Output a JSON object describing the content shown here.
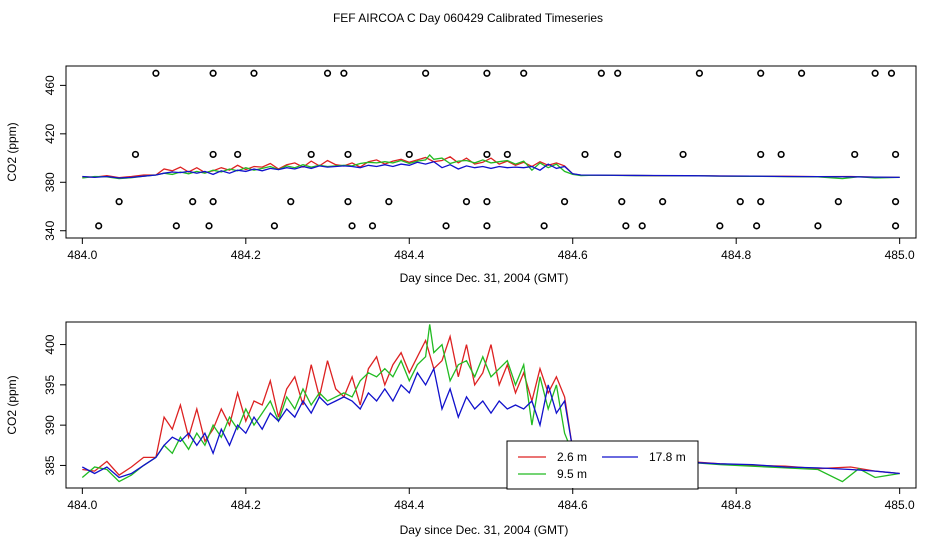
{
  "title": "FEF AIRCOA C  Day 060429  Calibrated Timeseries",
  "colors": {
    "red": "#dd2222",
    "green": "#22bb22",
    "blue": "#1111cc",
    "axis": "#000000"
  },
  "chart_data": [
    {
      "type": "scatter+line",
      "xlabel": "Day since Dec. 31, 2004 (GMT)",
      "ylabel": "CO2 (ppm)",
      "xlim": [
        483.98,
        485.02
      ],
      "ylim": [
        334,
        476
      ],
      "x_ticks": [
        484.0,
        484.2,
        484.4,
        484.6,
        484.8,
        485.0
      ],
      "x_tick_labels": [
        "484.0",
        "484.2",
        "484.4",
        "484.6",
        "484.8",
        "485.0"
      ],
      "y_ticks": [
        340,
        380,
        420,
        460
      ],
      "y_tick_labels": [
        "340",
        "380",
        "420",
        "460"
      ],
      "points": {
        "y_high": 470,
        "x_high": [
          484.09,
          484.16,
          484.21,
          484.3,
          484.32,
          484.42,
          484.495,
          484.54,
          484.635,
          484.655,
          484.755,
          484.83,
          484.88,
          484.97,
          484.99
        ],
        "y_mid": 403,
        "x_mid": [
          484.065,
          484.16,
          484.19,
          484.28,
          484.325,
          484.4,
          484.495,
          484.52,
          484.615,
          484.655,
          484.735,
          484.83,
          484.855,
          484.945,
          484.995
        ],
        "y_low1": 364,
        "x_low1": [
          484.045,
          484.135,
          484.16,
          484.255,
          484.325,
          484.375,
          484.47,
          484.495,
          484.59,
          484.66,
          484.71,
          484.805,
          484.83,
          484.925,
          484.995
        ],
        "y_low2": 344,
        "x_low2": [
          484.02,
          484.115,
          484.155,
          484.235,
          484.33,
          484.355,
          484.445,
          484.495,
          484.565,
          484.665,
          484.685,
          484.78,
          484.825,
          484.9,
          484.995
        ]
      }
    },
    {
      "type": "line",
      "xlabel": "Day since Dec. 31, 2004 (GMT)",
      "ylabel": "CO2 (ppm)",
      "xlim": [
        483.98,
        485.02
      ],
      "ylim": [
        382.2,
        402.8
      ],
      "x_ticks": [
        484.0,
        484.2,
        484.4,
        484.6,
        484.8,
        485.0
      ],
      "x_tick_labels": [
        "484.0",
        "484.2",
        "484.4",
        "484.6",
        "484.8",
        "485.0"
      ],
      "y_ticks": [
        385,
        390,
        395,
        400
      ],
      "y_tick_labels": [
        "385",
        "390",
        "395",
        "400"
      ],
      "legend": {
        "placement": "bottom-center",
        "entries": [
          {
            "name": "2.6 m",
            "color": "#dd2222"
          },
          {
            "name": "9.5 m",
            "color": "#22bb22"
          },
          {
            "name": "17.8 m",
            "color": "#1111cc"
          }
        ]
      },
      "series": [
        {
          "name": "2.6 m",
          "color": "#dd2222",
          "x": [
            484.0,
            484.015,
            484.03,
            484.045,
            484.06,
            484.075,
            484.09,
            484.1,
            484.11,
            484.12,
            484.13,
            484.14,
            484.15,
            484.16,
            484.17,
            484.18,
            484.19,
            484.2,
            484.21,
            484.22,
            484.23,
            484.24,
            484.25,
            484.26,
            484.27,
            484.28,
            484.29,
            484.3,
            484.31,
            484.32,
            484.33,
            484.34,
            484.35,
            484.36,
            484.37,
            484.38,
            484.39,
            484.4,
            484.41,
            484.42,
            484.43,
            484.44,
            484.45,
            484.46,
            484.47,
            484.48,
            484.49,
            484.5,
            484.51,
            484.52,
            484.53,
            484.54,
            484.55,
            484.56,
            484.57,
            484.58,
            484.59,
            484.6,
            484.61,
            484.63,
            484.66,
            484.7,
            484.74,
            484.78,
            484.82,
            484.86,
            484.9,
            484.94,
            484.97,
            485.0
          ],
          "values": [
            384.5,
            384.3,
            385.5,
            383.8,
            384.8,
            386.0,
            386.0,
            391.0,
            389.5,
            392.5,
            388.5,
            392.0,
            388.0,
            389.5,
            392.0,
            390.0,
            394.0,
            390.5,
            393.0,
            392.5,
            395.5,
            391.0,
            394.5,
            396.0,
            392.5,
            397.5,
            393.5,
            398.0,
            394.5,
            393.5,
            396.0,
            392.5,
            397.0,
            398.5,
            395.0,
            397.5,
            399.0,
            396.5,
            398.5,
            400.5,
            397.0,
            398.0,
            401.0,
            396.0,
            400.0,
            395.0,
            396.5,
            400.0,
            395.0,
            397.5,
            394.0,
            396.5,
            393.0,
            397.0,
            394.0,
            396.0,
            393.5,
            387.0,
            385.8,
            385.9,
            385.7,
            385.4,
            385.5,
            385.2,
            385.0,
            384.9,
            384.6,
            384.8,
            384.3,
            384.0
          ]
        },
        {
          "name": "9.5 m",
          "color": "#22bb22",
          "x": [
            484.0,
            484.015,
            484.03,
            484.045,
            484.06,
            484.075,
            484.09,
            484.1,
            484.11,
            484.12,
            484.13,
            484.14,
            484.15,
            484.16,
            484.17,
            484.18,
            484.19,
            484.2,
            484.21,
            484.22,
            484.23,
            484.24,
            484.25,
            484.26,
            484.27,
            484.28,
            484.29,
            484.3,
            484.31,
            484.32,
            484.33,
            484.34,
            484.35,
            484.36,
            484.37,
            484.38,
            484.39,
            484.4,
            484.41,
            484.42,
            484.425,
            484.43,
            484.44,
            484.45,
            484.46,
            484.47,
            484.48,
            484.49,
            484.5,
            484.51,
            484.52,
            484.53,
            484.54,
            484.55,
            484.56,
            484.57,
            484.58,
            484.59,
            484.6,
            484.61,
            484.63,
            484.66,
            484.7,
            484.74,
            484.78,
            484.82,
            484.86,
            484.9,
            484.93,
            484.95,
            484.97,
            485.0
          ],
          "values": [
            383.5,
            384.8,
            384.5,
            383.0,
            383.8,
            385.0,
            386.0,
            387.5,
            386.5,
            388.5,
            387.0,
            389.0,
            387.5,
            390.0,
            388.5,
            391.0,
            389.5,
            392.0,
            390.0,
            391.5,
            393.0,
            390.5,
            393.5,
            392.0,
            394.5,
            392.5,
            394.0,
            393.0,
            393.5,
            394.0,
            393.5,
            395.5,
            396.5,
            396.0,
            397.0,
            396.0,
            398.0,
            395.5,
            397.5,
            398.5,
            402.5,
            399.0,
            400.0,
            395.5,
            397.5,
            398.0,
            396.0,
            398.5,
            396.0,
            397.0,
            398.0,
            395.0,
            397.5,
            390.0,
            396.0,
            392.0,
            395.0,
            389.0,
            386.5,
            385.5,
            385.9,
            385.6,
            385.5,
            385.4,
            385.1,
            384.9,
            384.7,
            384.5,
            383.0,
            384.6,
            383.5,
            384.0
          ]
        },
        {
          "name": "17.8 m",
          "color": "#1111cc",
          "x": [
            484.0,
            484.015,
            484.03,
            484.045,
            484.06,
            484.075,
            484.09,
            484.1,
            484.11,
            484.12,
            484.13,
            484.14,
            484.15,
            484.16,
            484.17,
            484.18,
            484.19,
            484.2,
            484.21,
            484.22,
            484.23,
            484.24,
            484.25,
            484.26,
            484.27,
            484.28,
            484.29,
            484.3,
            484.31,
            484.32,
            484.33,
            484.34,
            484.35,
            484.36,
            484.37,
            484.38,
            484.39,
            484.4,
            484.41,
            484.42,
            484.43,
            484.44,
            484.45,
            484.46,
            484.47,
            484.48,
            484.49,
            484.5,
            484.51,
            484.52,
            484.53,
            484.54,
            484.55,
            484.56,
            484.57,
            484.58,
            484.59,
            484.6,
            484.61,
            484.63,
            484.66,
            484.7,
            484.74,
            484.78,
            484.82,
            484.86,
            484.9,
            484.94,
            484.97,
            485.0
          ],
          "values": [
            384.8,
            384.0,
            384.8,
            383.5,
            384.0,
            385.0,
            386.0,
            387.5,
            388.5,
            388.0,
            389.0,
            387.5,
            389.0,
            386.5,
            389.5,
            387.5,
            390.0,
            389.0,
            391.0,
            389.5,
            391.5,
            390.5,
            392.0,
            391.0,
            393.0,
            391.5,
            393.5,
            392.5,
            393.0,
            393.5,
            393.0,
            392.0,
            394.0,
            393.0,
            394.5,
            393.0,
            395.0,
            394.0,
            396.5,
            395.0,
            397.0,
            392.0,
            394.5,
            391.0,
            393.5,
            392.0,
            393.0,
            391.5,
            393.0,
            392.0,
            392.5,
            392.0,
            393.0,
            390.0,
            395.0,
            391.5,
            393.0,
            387.0,
            386.0,
            385.9,
            385.7,
            385.6,
            385.4,
            385.2,
            385.1,
            384.8,
            384.7,
            384.5,
            384.3,
            384.0
          ]
        }
      ]
    }
  ]
}
